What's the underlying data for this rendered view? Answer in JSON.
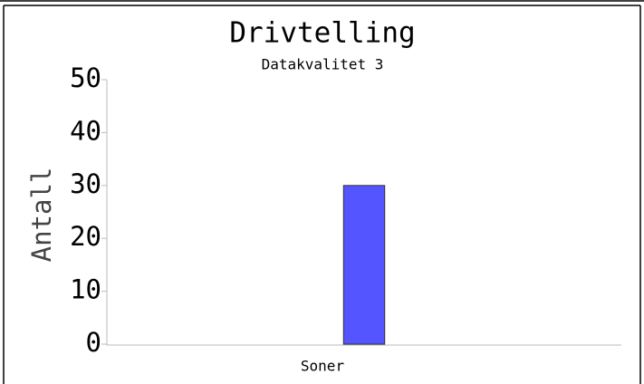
{
  "chart_data": {
    "type": "bar",
    "title": "Drivtelling",
    "subtitle": "Datakvalitet 3",
    "x_label": "Soner",
    "y_label": "Antall",
    "categories": [
      null
    ],
    "values": [
      30
    ],
    "color": "#5555ff",
    "ylim": [
      0,
      50
    ],
    "yticks": [
      0,
      10,
      20,
      30,
      40,
      50
    ],
    "grid": false
  }
}
